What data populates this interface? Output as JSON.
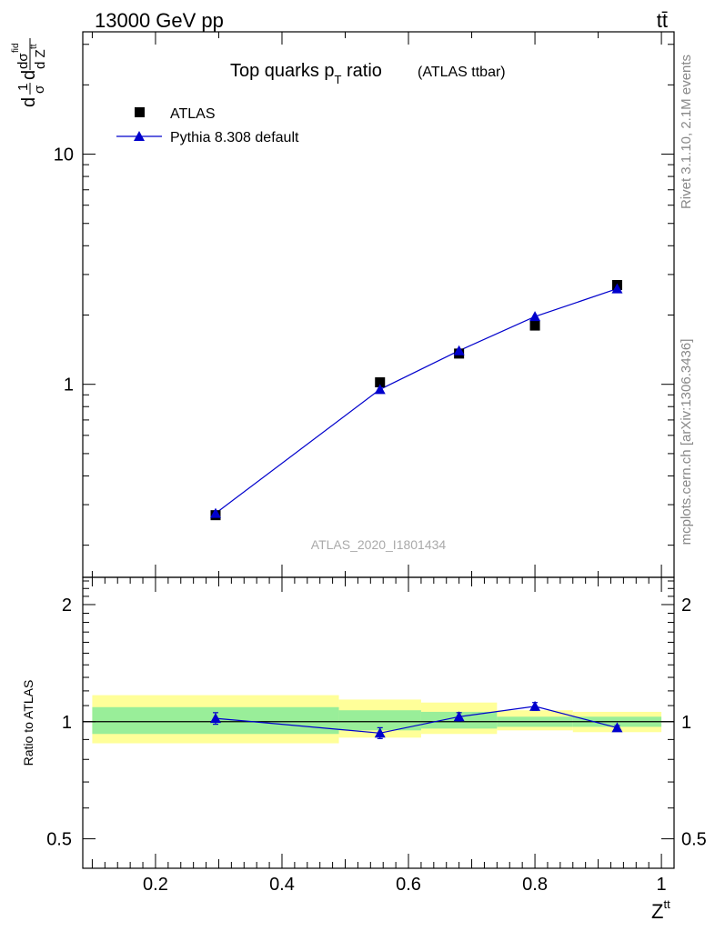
{
  "header": {
    "energy": "13000 GeV pp",
    "process": "tt̄"
  },
  "side_text": {
    "rivet": "Rivet 3.1.10,  2.1M events",
    "site": "mcplots.cern.ch [arXiv:1306.3436]"
  },
  "chart_data": [
    {
      "type": "scatter",
      "panel": "main",
      "title": "Top quarks p",
      "title_sub": "T",
      "title_rest": " ratio",
      "title_note": "(ATLAS ttbar)",
      "watermark": "ATLAS_2020_I1801434",
      "xlabel": "Z",
      "xlabel_sup": "tt",
      "ylabel": {
        "p1": "d",
        "frac1_num": "1",
        "frac1_den": "σ",
        "p2": "d",
        "frac2_num": "dσ",
        "frac2_num_sup": "fid",
        "frac2_den": "d Z",
        "frac2_den_sup": "tt"
      },
      "xlim": [
        0.085,
        1.02
      ],
      "ylim": [
        0.145,
        34
      ],
      "yscale": "log",
      "yticks": [
        {
          "value": 1,
          "label": "1"
        },
        {
          "value": 10,
          "label": "10"
        }
      ],
      "legend_position": "top-left",
      "series": [
        {
          "name": "ATLAS",
          "marker": "square",
          "color": "#000000",
          "x": [
            0.295,
            0.555,
            0.68,
            0.8,
            0.93
          ],
          "y": [
            0.27,
            1.02,
            1.36,
            1.8,
            2.7
          ]
        },
        {
          "name": "Pythia 8.308 default",
          "marker": "triangle",
          "color": "#0000cc",
          "x": [
            0.295,
            0.555,
            0.68,
            0.8,
            0.93
          ],
          "y": [
            0.275,
            0.95,
            1.4,
            1.97,
            2.6
          ]
        }
      ]
    },
    {
      "type": "line",
      "panel": "ratio",
      "ylabel": "Ratio to ATLAS",
      "xlim": [
        0.085,
        1.02
      ],
      "ylim": [
        0.42,
        2.35
      ],
      "yscale": "log",
      "yticks": [
        {
          "value": 0.5,
          "label": "0.5"
        },
        {
          "value": 1,
          "label": "1"
        },
        {
          "value": 2,
          "label": "2"
        }
      ],
      "xticks": [
        {
          "value": 0.2,
          "label": "0.2"
        },
        {
          "value": 0.4,
          "label": "0.4"
        },
        {
          "value": 0.6,
          "label": "0.6"
        },
        {
          "value": 0.8,
          "label": "0.8"
        },
        {
          "value": 1.0,
          "label": "1"
        }
      ],
      "bands": [
        {
          "x0": 0.1,
          "x1": 0.49,
          "yellow": [
            0.88,
            1.17
          ],
          "green": [
            0.93,
            1.09
          ]
        },
        {
          "x0": 0.49,
          "x1": 0.62,
          "yellow": [
            0.91,
            1.14
          ],
          "green": [
            0.95,
            1.07
          ]
        },
        {
          "x0": 0.62,
          "x1": 0.74,
          "yellow": [
            0.93,
            1.12
          ],
          "green": [
            0.96,
            1.06
          ]
        },
        {
          "x0": 0.74,
          "x1": 0.86,
          "yellow": [
            0.95,
            1.07
          ],
          "green": [
            0.97,
            1.03
          ]
        },
        {
          "x0": 0.86,
          "x1": 1.0,
          "yellow": [
            0.94,
            1.06
          ],
          "green": [
            0.97,
            1.03
          ]
        }
      ],
      "series": [
        {
          "name": "Pythia 8.308 default",
          "color": "#0000cc",
          "x": [
            0.295,
            0.555,
            0.68,
            0.8,
            0.93
          ],
          "y": [
            1.02,
            0.935,
            1.03,
            1.095,
            0.965
          ],
          "err": [
            0.035,
            0.03,
            0.025,
            0.025,
            0.012
          ]
        }
      ]
    }
  ]
}
